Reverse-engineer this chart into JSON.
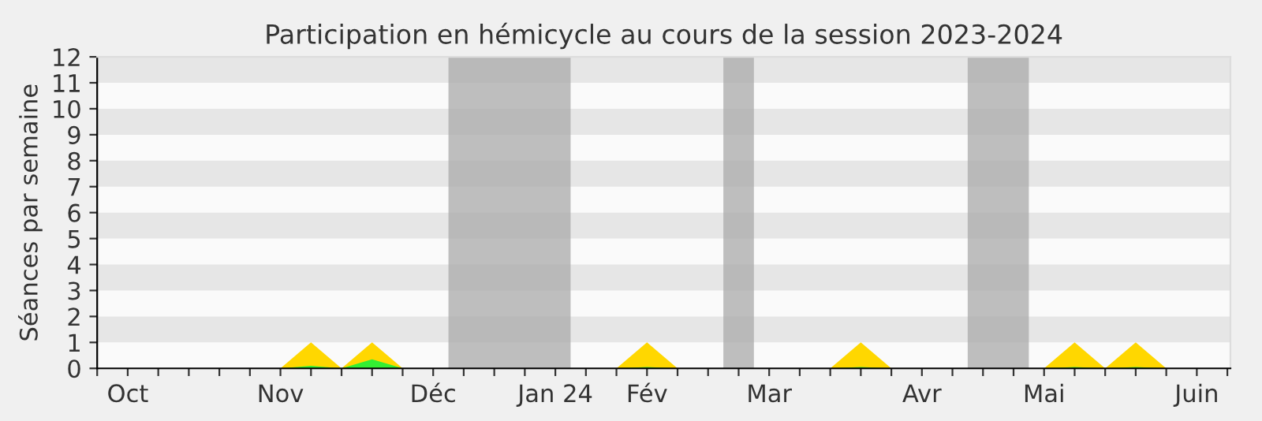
{
  "chart_data": {
    "type": "area",
    "title": "Participation en hémicycle au cours de la session 2023-2024",
    "ylabel": "Séances par semaine",
    "x": [
      "2023-10-02",
      "2023-10-09",
      "2023-10-16",
      "2023-10-23",
      "2023-10-30",
      "2023-11-06",
      "2023-11-13",
      "2023-11-20",
      "2023-11-27",
      "2023-12-04",
      "2023-12-11",
      "2023-12-18",
      "2023-12-25",
      "2024-01-01",
      "2024-01-08",
      "2024-01-15",
      "2024-01-22",
      "2024-01-29",
      "2024-02-05",
      "2024-02-12",
      "2024-02-19",
      "2024-02-26",
      "2024-03-04",
      "2024-03-11",
      "2024-03-18",
      "2024-03-25",
      "2024-04-01",
      "2024-04-08",
      "2024-04-15",
      "2024-04-22",
      "2024-04-29",
      "2024-05-06",
      "2024-05-13",
      "2024-05-20",
      "2024-05-27",
      "2024-06-03",
      "2024-06-10",
      "2024-06-17"
    ],
    "series": [
      {
        "color": "#ffd700",
        "values": [
          0,
          0,
          0,
          0,
          0,
          0,
          0,
          1,
          0,
          1,
          0,
          0,
          0,
          0,
          0,
          0,
          0,
          0,
          1,
          0,
          0,
          0,
          0,
          0,
          0,
          1,
          0,
          0,
          0,
          0,
          0,
          0,
          1,
          0,
          1,
          0,
          0,
          0
        ]
      },
      {
        "color": "#33ee33",
        "values": [
          0,
          0,
          0,
          0,
          0,
          0,
          0,
          0.1,
          0,
          0.35,
          0,
          0,
          0,
          0,
          0,
          0,
          0,
          0,
          0.05,
          0,
          0,
          0,
          0,
          0,
          0,
          0.05,
          0,
          0,
          0,
          0,
          0,
          0,
          0.05,
          0,
          0.05,
          0,
          0,
          0
        ]
      }
    ],
    "xlim": [
      "2023-10-02",
      "2024-06-17T17:00"
    ],
    "ylim": [
      0,
      12
    ],
    "xticks": [
      {
        "value": "2023-10-02",
        "label": null
      },
      {
        "value": "2023-10-09",
        "label": "Oct"
      },
      {
        "value": "2023-10-16",
        "label": null
      },
      {
        "value": "2023-10-23",
        "label": null
      },
      {
        "value": "2023-10-30",
        "label": null
      },
      {
        "value": "2023-11-06",
        "label": null
      },
      {
        "value": "2023-11-13",
        "label": "Nov"
      },
      {
        "value": "2023-11-20",
        "label": null
      },
      {
        "value": "2023-11-27",
        "label": null
      },
      {
        "value": "2023-12-04",
        "label": null
      },
      {
        "value": "2023-12-11",
        "label": null
      },
      {
        "value": "2023-12-18",
        "label": "Déc"
      },
      {
        "value": "2023-12-25",
        "label": null
      },
      {
        "value": "2024-01-01",
        "label": null
      },
      {
        "value": "2024-01-08",
        "label": null
      },
      {
        "value": "2024-01-15",
        "label": "Jan 24"
      },
      {
        "value": "2024-01-22",
        "label": null
      },
      {
        "value": "2024-01-29",
        "label": null
      },
      {
        "value": "2024-02-05",
        "label": "Fév"
      },
      {
        "value": "2024-02-12",
        "label": null
      },
      {
        "value": "2024-02-19",
        "label": null
      },
      {
        "value": "2024-02-26",
        "label": null
      },
      {
        "value": "2024-03-04",
        "label": "Mar"
      },
      {
        "value": "2024-03-11",
        "label": null
      },
      {
        "value": "2024-03-18",
        "label": null
      },
      {
        "value": "2024-03-25",
        "label": null
      },
      {
        "value": "2024-04-01",
        "label": null
      },
      {
        "value": "2024-04-08",
        "label": "Avr"
      },
      {
        "value": "2024-04-15",
        "label": null
      },
      {
        "value": "2024-04-22",
        "label": null
      },
      {
        "value": "2024-04-29",
        "label": null
      },
      {
        "value": "2024-05-06",
        "label": "Mai"
      },
      {
        "value": "2024-05-13",
        "label": null
      },
      {
        "value": "2024-05-20",
        "label": null
      },
      {
        "value": "2024-05-27",
        "label": null
      },
      {
        "value": "2024-06-03",
        "label": null
      },
      {
        "value": "2024-06-10",
        "label": "Juin"
      },
      {
        "value": "2024-06-17",
        "label": null
      }
    ],
    "yticks": [
      0,
      1,
      2,
      3,
      4,
      5,
      6,
      7,
      8,
      9,
      10,
      11,
      12
    ],
    "bands": [
      {
        "axis": "x",
        "from": "2023-12-21T12:00",
        "to": "2024-01-18T12:00",
        "color": "#aaaaaa"
      },
      {
        "axis": "x",
        "from": "2024-02-22T12:00",
        "to": "2024-02-29T12:00",
        "color": "#aaaaaa"
      },
      {
        "axis": "x",
        "from": "2024-04-18T12:00",
        "to": "2024-05-02T12:00",
        "color": "#aaaaaa"
      }
    ]
  }
}
